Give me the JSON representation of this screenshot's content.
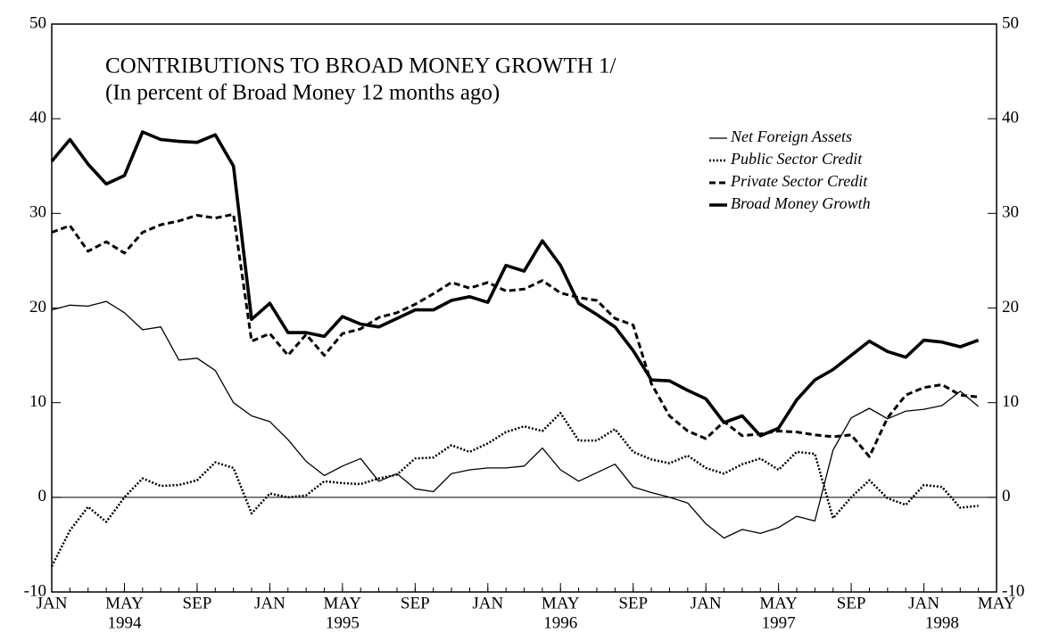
{
  "chart_data": {
    "type": "line",
    "title": "CONTRIBUTIONS TO BROAD MONEY GROWTH 1/",
    "subtitle": "(In percent of Broad Money 12 months ago)",
    "x": [
      "1994-01",
      "1994-02",
      "1994-03",
      "1994-04",
      "1994-05",
      "1994-06",
      "1994-07",
      "1994-08",
      "1994-09",
      "1994-10",
      "1994-11",
      "1994-12",
      "1995-01",
      "1995-02",
      "1995-03",
      "1995-04",
      "1995-05",
      "1995-06",
      "1995-07",
      "1995-08",
      "1995-09",
      "1995-10",
      "1995-11",
      "1995-12",
      "1996-01",
      "1996-02",
      "1996-03",
      "1996-04",
      "1996-05",
      "1996-06",
      "1996-07",
      "1996-08",
      "1996-09",
      "1996-10",
      "1996-11",
      "1996-12",
      "1997-01",
      "1997-02",
      "1997-03",
      "1997-04",
      "1997-05",
      "1997-06",
      "1997-07",
      "1997-08",
      "1997-09",
      "1997-10",
      "1997-11",
      "1997-12",
      "1998-01",
      "1998-02",
      "1998-03",
      "1998-04"
    ],
    "series": [
      {
        "name": "Net Foreign Assets",
        "color": "#000000",
        "line_style": "solid",
        "width": 1.3,
        "values": [
          19.8,
          20.3,
          20.2,
          20.7,
          19.5,
          17.7,
          18,
          14.5,
          14.7,
          13.4,
          10,
          8.6,
          8,
          6.1,
          3.8,
          2.3,
          3.3,
          4.1,
          1.7,
          2.5,
          0.9,
          0.6,
          2.5,
          2.9,
          3.1,
          3.1,
          3.3,
          5.2,
          2.9,
          1.7,
          2.6,
          3.5,
          1.1,
          0.5,
          0,
          -0.6,
          -2.8,
          -4.3,
          -3.4,
          -3.8,
          -3.2,
          -2,
          -2.5,
          5,
          8.4,
          9.4,
          8.3,
          9.1,
          9.3,
          9.7,
          11.2,
          9.6
        ]
      },
      {
        "name": "Public Sector Credit",
        "color": "#000000",
        "line_style": "dotted",
        "width": 2.5,
        "values": [
          -7.3,
          -3.5,
          -1,
          -2.6,
          0,
          2,
          1.2,
          1.3,
          1.8,
          3.7,
          3.1,
          -1.7,
          0.4,
          0,
          0.2,
          1.7,
          1.5,
          1.4,
          2,
          2.4,
          4.1,
          4.2,
          5.5,
          4.8,
          5.7,
          6.9,
          7.5,
          7,
          8.9,
          6,
          6,
          7.2,
          4.8,
          4,
          3.6,
          4.4,
          3.1,
          2.5,
          3.5,
          4.1,
          2.9,
          4.8,
          4.6,
          -2.2,
          0,
          1.8,
          -0.1,
          -0.8,
          1.3,
          1.1,
          -1.1,
          -0.9
        ]
      },
      {
        "name": "Private Sector Credit",
        "color": "#000000",
        "line_style": "dashed",
        "width": 3,
        "values": [
          28,
          28.7,
          26,
          27,
          25.8,
          28,
          28.8,
          29.2,
          29.8,
          29.5,
          29.9,
          16.5,
          17.3,
          15,
          17.2,
          15,
          17.3,
          17.8,
          19,
          19.5,
          20.4,
          21.5,
          22.7,
          22.1,
          22.7,
          21.8,
          22,
          22.9,
          21.6,
          21.1,
          20.8,
          18.9,
          18.2,
          12,
          8.6,
          7,
          6.2,
          8,
          6.5,
          6.7,
          7,
          6.9,
          6.6,
          6.4,
          6.6,
          4.3,
          8.4,
          10.8,
          11.6,
          11.9,
          10.8,
          10.6
        ]
      },
      {
        "name": "Broad Money Growth",
        "color": "#000000",
        "line_style": "thick",
        "width": 3.6,
        "values": [
          35.5,
          37.8,
          35.2,
          33.1,
          34,
          38.6,
          37.8,
          37.6,
          37.5,
          38.3,
          35,
          18.8,
          20.5,
          17.4,
          17.4,
          17,
          19.1,
          18.3,
          18,
          18.9,
          19.8,
          19.8,
          20.8,
          21.2,
          20.6,
          24.5,
          23.9,
          27.1,
          24.5,
          20.5,
          19.3,
          18,
          15.5,
          12.4,
          12.3,
          11.3,
          10.4,
          7.9,
          8.6,
          6.5,
          7.3,
          10.3,
          12.4,
          13.5,
          15,
          16.5,
          15.4,
          14.8,
          16.6,
          16.4,
          15.9,
          16.6
        ]
      }
    ],
    "xlim": [
      "1994-01",
      "1998-05"
    ],
    "xticks": [
      {
        "value": "1994-01",
        "label": "JAN"
      },
      {
        "value": "1994-05",
        "label": "MAY"
      },
      {
        "value": "1994-09",
        "label": "SEP"
      },
      {
        "value": "1995-01",
        "label": "JAN"
      },
      {
        "value": "1995-05",
        "label": "MAY"
      },
      {
        "value": "1995-09",
        "label": "SEP"
      },
      {
        "value": "1996-01",
        "label": "JAN"
      },
      {
        "value": "1996-05",
        "label": "MAY"
      },
      {
        "value": "1996-09",
        "label": "SEP"
      },
      {
        "value": "1997-01",
        "label": "JAN"
      },
      {
        "value": "1997-05",
        "label": "MAY"
      },
      {
        "value": "1997-09",
        "label": "SEP"
      },
      {
        "value": "1998-01",
        "label": "JAN"
      },
      {
        "value": "1998-05",
        "label": "MAY"
      }
    ],
    "year_labels": [
      {
        "value": "1994-05",
        "label": "1994"
      },
      {
        "value": "1995-05",
        "label": "1995"
      },
      {
        "value": "1996-05",
        "label": "1996"
      },
      {
        "value": "1997-05",
        "label": "1997"
      },
      {
        "value": "1998-02",
        "label": "1998"
      }
    ],
    "ylim": [
      -10,
      50
    ],
    "yticks": [
      -10,
      0,
      10,
      20,
      30,
      40,
      50
    ],
    "y2lim": [
      -10,
      50
    ],
    "y2ticks": [
      -10,
      0,
      10,
      20,
      30,
      40,
      50
    ],
    "zero_line": true,
    "legend": "upper right"
  }
}
